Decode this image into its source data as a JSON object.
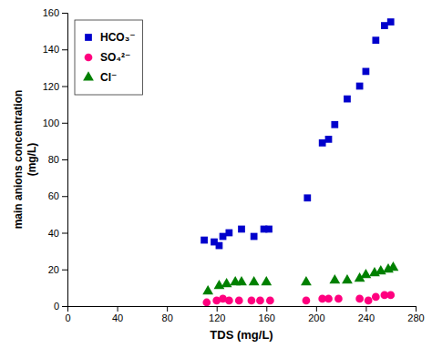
{
  "chart_data": {
    "type": "scatter",
    "xlabel": "TDS (mg/L)",
    "ylabel": "main anions concentration\n(mg/L)",
    "xlim": [
      0,
      280
    ],
    "ylim": [
      0,
      160
    ],
    "xticks": [
      0,
      40,
      80,
      120,
      160,
      200,
      240,
      280
    ],
    "yticks": [
      0,
      20,
      40,
      60,
      80,
      100,
      120,
      140,
      160
    ],
    "legend": "upper left",
    "series": [
      {
        "name": "HCO₃⁻",
        "color": "#0000CC",
        "marker": "square",
        "x": [
          110,
          118,
          122,
          125,
          130,
          140,
          150,
          158,
          162,
          193,
          205,
          210,
          215,
          225,
          235,
          240,
          248,
          255,
          260
        ],
        "values": [
          36,
          35,
          33,
          38,
          40,
          42,
          38,
          42,
          42,
          59,
          89,
          91,
          99,
          113,
          120,
          128,
          145,
          153,
          155
        ]
      },
      {
        "name": "SO₄²⁻",
        "color": "#FF007F",
        "marker": "circle",
        "x": [
          112,
          120,
          125,
          130,
          138,
          148,
          155,
          163,
          192,
          205,
          210,
          218,
          235,
          242,
          248,
          255,
          260
        ],
        "values": [
          2,
          3,
          4,
          3,
          3,
          3,
          3,
          3,
          3,
          4,
          4,
          4,
          4,
          3,
          5,
          6,
          6
        ]
      },
      {
        "name": "Cl⁻",
        "color": "#008000",
        "marker": "triangle-up",
        "x": [
          113,
          122,
          128,
          135,
          140,
          150,
          160,
          192,
          215,
          225,
          235,
          240,
          247,
          252,
          258,
          262
        ],
        "values": [
          8,
          11,
          12,
          13,
          13,
          13,
          13,
          13,
          14,
          14,
          15,
          17,
          18,
          19,
          20,
          21
        ]
      }
    ]
  }
}
